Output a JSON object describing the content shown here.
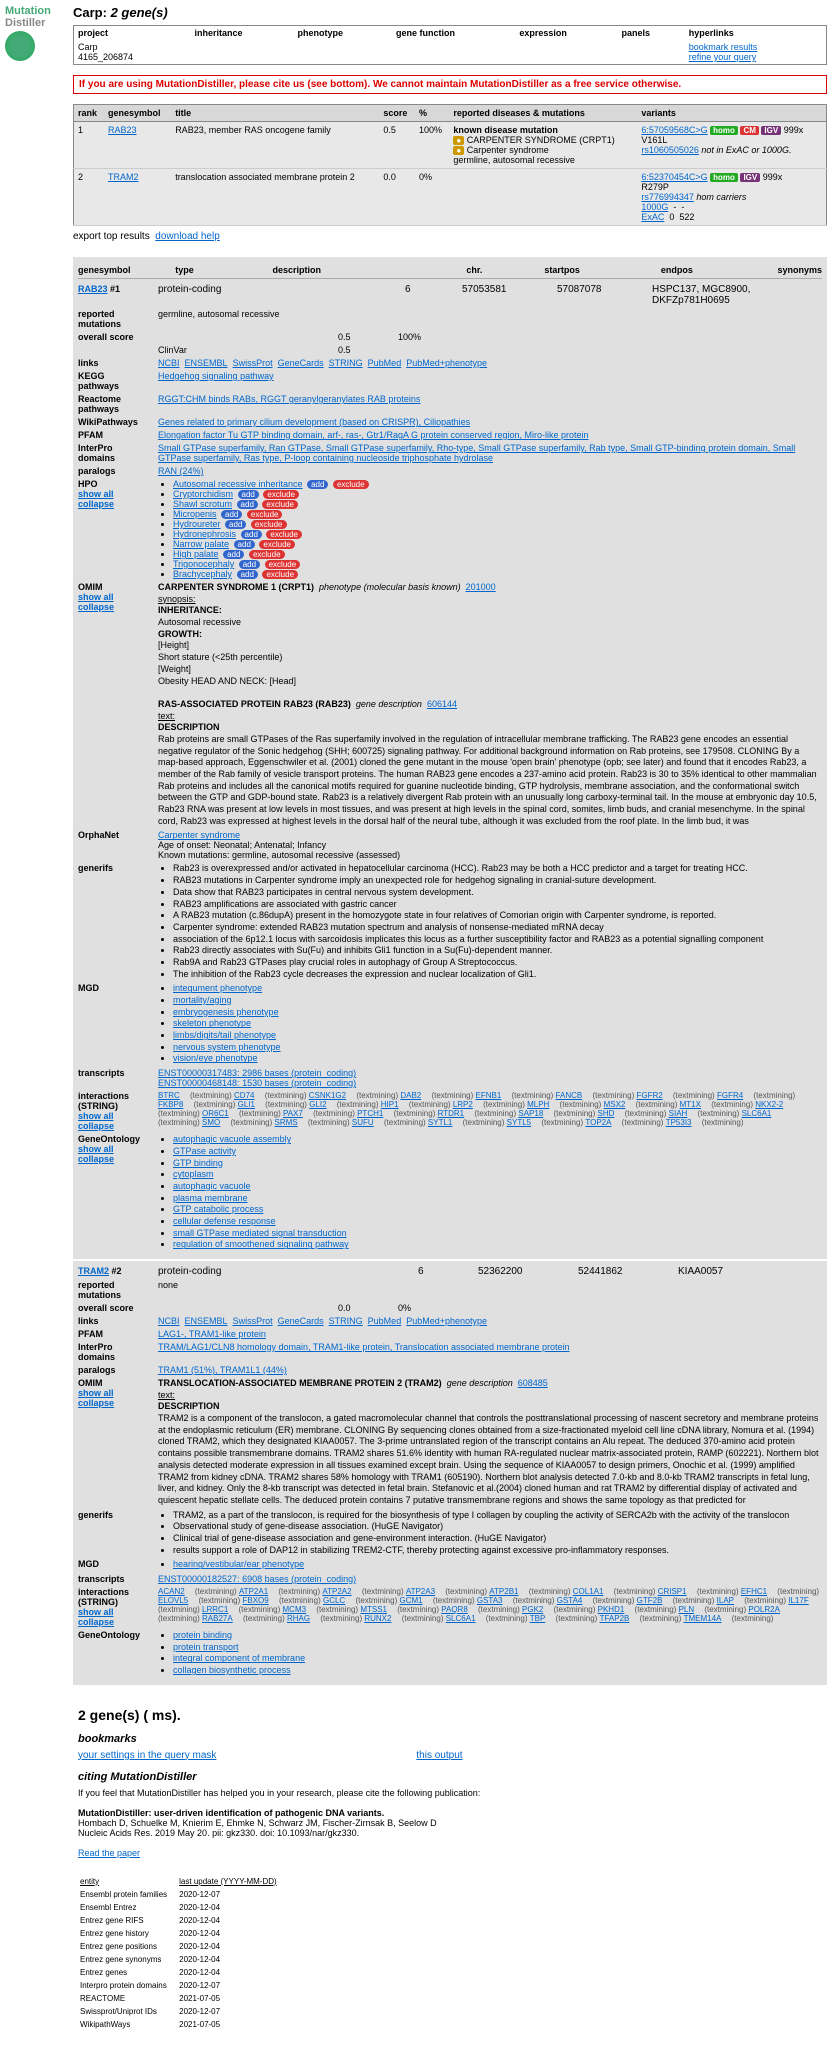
{
  "logo": {
    "mutation": "Mutation",
    "distiller": "Distiller"
  },
  "title_prefix": "Carp:",
  "title_count": "2 gene(s)",
  "project_table": {
    "headers": [
      "project",
      "inheritance",
      "phenotype",
      "gene function",
      "expression",
      "panels",
      "hyperlinks"
    ],
    "project_name": "Carp",
    "project_id": "4165_206874",
    "link_bookmark": "bookmark results",
    "link_refine": "refine your query"
  },
  "warning": "If you are using MutationDistiller, please cite us (see bottom). We cannot maintain MutationDistiller as a free service otherwise.",
  "results": {
    "headers": [
      "rank",
      "genesymbol",
      "title",
      "score",
      "%",
      "reported diseases & mutations",
      "variants"
    ],
    "rows": [
      {
        "rank": "1",
        "gene": "RAB23",
        "title": "RAB23, member RAS oncogene family",
        "score": "0.5",
        "pct": "100%",
        "disease_title": "known disease mutation",
        "disease_lines": [
          "CARPENTER SYNDROME (CRPT1)",
          "Carpenter syndrome",
          "germline, autosomal recessive"
        ],
        "variant_pos": "6:57059568C>G",
        "variant_badges": [
          "homo",
          "CM",
          "IGV"
        ],
        "variant_extra": "999x",
        "variant_protein": "V161L",
        "variant_rs": "rs1060505026",
        "variant_note": " not in ExAC or 1000G."
      },
      {
        "rank": "2",
        "gene": "TRAM2",
        "title": "translocation associated membrane protein 2",
        "score": "0.0",
        "pct": "0%",
        "disease_title": "",
        "disease_lines": [],
        "variant_pos": "6:52370454C>G",
        "variant_badges": [
          "homo",
          "IGV"
        ],
        "variant_extra": "999x",
        "variant_protein": "R279P",
        "variant_rs": "rs776994347",
        "variant_note": " hom carriers",
        "variant_counts": [
          [
            "1000G",
            "-",
            "-"
          ],
          [
            "ExAC",
            "0",
            "522"
          ]
        ]
      }
    ]
  },
  "export": {
    "label": "export top results",
    "link": "download help"
  },
  "detail_headers": [
    "genesymbol",
    "type",
    "description",
    "chr.",
    "startpos",
    "endpos",
    "synonyms"
  ],
  "gene1": {
    "symbol": "RAB23",
    "rank": "#1",
    "type": "protein-coding",
    "chr": "6",
    "start": "57053581",
    "end": "57087078",
    "synonyms": "HSPC137, MGC8900, DKFZp781H0695",
    "reported_mutations": "germline, autosomal recessive",
    "overall_score": "0.5",
    "overall_pct": "100%",
    "clinvar": "ClinVar",
    "clinvar_score": "0.5",
    "links": [
      "NCBI",
      "ENSEMBL",
      "SwissProt",
      "GeneCards",
      "STRING",
      "PubMed",
      "PubMed+phenotype"
    ],
    "kegg": "Hedgehog signaling pathway",
    "reactome": "RGGT:CHM binds RABs, RGGT geranylgeranylates RAB proteins",
    "wikipathways": "Genes related to primary cilium development (based on CRISPR), Ciliopathies",
    "pfam": "Elongation factor Tu GTP binding domain, arf-, ras-, Gtr1/RagA G protein conserved region, Miro-like protein",
    "interpro": "Small GTPase superfamily, Ran GTPase, Small GTPase superfamily, Rho-type, Small GTPase superfamily, Rab type, Small GTP-binding protein domain, Small GTPase superfamily, Ras type, P-loop containing nucleoside triphosphate hydrolase",
    "paralogs": "RAN (24%)",
    "hpo_label": "HPO",
    "show_all": "show all",
    "collapse": "collapse",
    "hpo_items": [
      {
        "t": "Autosomal recessive inheritance",
        "p1": "add",
        "p2": "exclude"
      },
      {
        "t": "Cryptorchidism",
        "p1": "add",
        "p2": "exclude"
      },
      {
        "t": "Shawl scrotum",
        "p1": "add",
        "p2": "exclude"
      },
      {
        "t": "Micropenis",
        "p1": "add",
        "p2": "exclude"
      },
      {
        "t": "Hydroureter",
        "p1": "add",
        "p2": "exclude"
      },
      {
        "t": "Hydronephrosis",
        "p1": "add",
        "p2": "exclude"
      },
      {
        "t": "Narrow palate",
        "p1": "add",
        "p2": "exclude"
      },
      {
        "t": "High palate",
        "p1": "add",
        "p2": "exclude"
      },
      {
        "t": "Trigonocephaly",
        "p1": "add",
        "p2": "exclude"
      },
      {
        "t": "Brachycephaly",
        "p1": "add",
        "p2": "exclude"
      }
    ],
    "omim_title": "CARPENTER SYNDROME 1 (CRPT1)",
    "omim_pheno": "phenotype (molecular basis known)",
    "omim_id": "201000",
    "omim_synopsis": "synopsis:",
    "omim_inheritance_h": "INHERITANCE:",
    "omim_inheritance": "Autosomal recessive",
    "omim_growth_h": "GROWTH:",
    "omim_growth": "[Height]\nShort stature (<25th percentile)\n[Weight]\nObesity HEAD AND NECK: [Head]",
    "omim_gene_title": "RAS-ASSOCIATED PROTEIN RAB23 (RAB23)",
    "omim_gene_note": "gene description",
    "omim_gene_id": "606144",
    "omim_text": "text:",
    "omim_desc_h": "DESCRIPTION",
    "omim_desc": "Rab proteins are small GTPases of the Ras superfamily involved in the regulation of intracellular membrane trafficking. The RAB23 gene encodes an essential negative regulator of the Sonic hedgehog (SHH; 600725) signaling pathway. For additional background information on Rab proteins, see 179508. CLONING By a map-based approach, Eggenschwiler et al. (2001) cloned the gene mutant in the mouse 'open brain' phenotype (opb; see later) and found that it encodes Rab23, a member of the Rab family of vesicle transport proteins. The human RAB23 gene encodes a 237-amino acid protein. Rab23 is 30 to 35% identical to other mammalian Rab proteins and includes all the canonical motifs required for guanine nucleotide binding, GTP hydrolysis, membrane association, and the conformational switch between the GTP and GDP-bound state. Rab23 is a relatively divergent Rab protein with an unusually long carboxy-terminal tail. In the mouse at embryonic day 10.5, Rab23 RNA was present at low levels in most tissues, and was present at high levels in the spinal cord, somites, limb buds, and cranial mesenchyme. In the spinal cord, Rab23 was expressed at highest levels in the dorsal half of the neural tube, although it was excluded from the roof plate. In the limb bud, it was",
    "orphanet_link": "Carpenter syndrome",
    "orphanet_age": "Age of onset: Neonatal; Antenatal; Infancy",
    "orphanet_known": "Known mutations: germline, autosomal recessive (assessed)",
    "generifs": [
      "Rab23 is overexpressed and/or activated in hepatocellular carcinoma (HCC). Rab23 may be both a HCC predictor and a target for treating HCC.",
      "RAB23 mutations in Carpenter syndrome imply an unexpected role for hedgehog signaling in cranial-suture development.",
      "Data show that RAB23 participates in central nervous system development.",
      "RAB23 amplifications are associated with gastric cancer",
      "A RAB23 mutation (c.86dupA) present in the homozygote state in four relatives of Comorian origin with Carpenter syndrome, is reported.",
      "Carpenter syndrome: extended RAB23 mutation spectrum and analysis of nonsense-mediated mRNA decay",
      "association of the 6p12.1 locus with sarcoidosis implicates this locus as a further susceptibility factor and RAB23 as a potential signalling component",
      "Rab23 directly associates with Su(Fu) and inhibits Gli1 function in a Su(Fu)-dependent manner.",
      "Rab9A and Rab23 GTPases play crucial roles in autophagy of Group A Streptococcus.",
      "The inhibition of the Rab23 cycle decreases the expression and nuclear localization of Gli1."
    ],
    "mgd": [
      "integument phenotype",
      "mortality/aging",
      "embryogenesis phenotype",
      "skeleton phenotype",
      "limbs/digits/tail phenotype",
      "nervous system phenotype",
      "vision/eye phenotype"
    ],
    "transcripts": "ENST00000317483: 2986 bases (protein_coding)\nENST00000468148: 1530 bases (protein_coding)",
    "interactions": "BTRC CD74 CSNK1G2 DAB2 EFNB1 FANCB FGFR2 FGFR4 FKBP8 GLI1 GLI2 HIP1 LRP2 MLPH MSX2 MT1X NKX2-2 OR6C1 PAX7 PTCH1 RTDR1 SAP18 SHD SIAH SLC6A1 SMO SRMS SUFU SYTL1 SYTL5 TOP2A TP53I3",
    "go": [
      "autophagic vacuole assembly",
      "GTPase activity",
      "GTP binding",
      "cytoplasm",
      "autophagic vacuole",
      "plasma membrane",
      "GTP catabolic process",
      "cellular defense response",
      "small GTPase mediated signal transduction",
      "regulation of smoothened signaling pathway"
    ]
  },
  "gene2": {
    "symbol": "TRAM2",
    "rank": "#2",
    "type": "protein-coding",
    "chr": "6",
    "start": "52362200",
    "end": "52441862",
    "synonyms": "KIAA0057",
    "reported_mutations": "none",
    "overall_score": "0.0",
    "overall_pct": "0%",
    "links": [
      "NCBI",
      "ENSEMBL",
      "SwissProt",
      "GeneCards",
      "STRING",
      "PubMed",
      "PubMed+phenotype"
    ],
    "pfam": "LAG1-, TRAM1-like protein",
    "interpro": "TRAM/LAG1/CLN8 homology domain, TRAM1-like protein, Translocation associated membrane protein",
    "paralogs": "TRAM1 (51%), TRAM1L1 (44%)",
    "omim_title": "TRANSLOCATION-ASSOCIATED MEMBRANE PROTEIN 2 (TRAM2)",
    "omim_gene_note": "gene description",
    "omim_gene_id": "608485",
    "omim_text": "text:",
    "omim_desc_h": "DESCRIPTION",
    "omim_desc": "TRAM2 is a component of the translocon, a gated macromolecular channel that controls the posttranslational processing of nascent secretory and membrane proteins at the endoplasmic reticulum (ER) membrane. CLONING By sequencing clones obtained from a size-fractionated myeloid cell line cDNA library, Nomura et al. (1994) cloned TRAM2, which they designated KIAA0057. The 3-prime untranslated region of the transcript contains an Alu repeat. The deduced 370-amino acid protein contains possible transmembrane domains. TRAM2 shares 51.6% identity with human RA-regulated nuclear matrix-associated protein, RAMP (602221). Northern blot analysis detected moderate expression in all tissues examined except brain. Using the sequence of KIAA0057 to design primers, Onochic et al. (1999) amplified TRAM2 from kidney cDNA. TRAM2 shares 58% homology with TRAM1 (605190). Northern blot analysis detected 7.0-kb and 8.0-kb TRAM2 transcripts in fetal lung, liver, and kidney. Only the 8-kb transcript was detected in fetal brain. Stefanovic et al.(2004) cloned human and rat TRAM2 by differential display of activated and quiescent hepatic stellate cells. The deduced protein contains 7 putative transmembrane regions and shows the same topology as that predicted for",
    "generifs": [
      "TRAM2, as a part of the translocon, is required for the biosynthesis of type I collagen by coupling the activity of SERCA2b with the activity of the translocon",
      "Observational study of gene-disease association. (HuGE Navigator)",
      "Clinical trial of gene-disease association and gene-environment interaction. (HuGE Navigator)",
      "results support a role of DAP12 in stabilizing TREM2-CTF, thereby protecting against excessive pro-inflammatory responses."
    ],
    "mgd": [
      "hearing/vestibular/ear phenotype"
    ],
    "transcripts": "ENST00000182527: 6908 bases (protein_coding)",
    "interactions": "ACAN2 ATP2A1 ATP2A2 ATP2A3 ATP2B1 COL1A1 CRISP1 EFHC1 ELOVL5 FBXO9 GCLC GCM1 GSTA3 GSTA4 GTF2B ILAP IL17F LRRC1 MCM3 MTSS1 PAQR8 PGK2 PKHD1 PLN POLR2A RAB27A RHAG RUNX2 SLC6A1 TBP TFAP2B TMEM14A",
    "go": [
      "protein binding",
      "protein transport",
      "integral component of membrane",
      "collagen biosynthetic process"
    ]
  },
  "footer": {
    "gene_count": "2 gene(s) ( ms).",
    "bookmarks_h": "bookmarks",
    "bm_query": "your settings in the query mask",
    "bm_output": "this output",
    "citing_h": "citing MutationDistiller",
    "citing_intro": "If you feel that MutationDistiller has helped you in your research, please cite the following publication:",
    "cite_title": "MutationDistiller: user-driven identification of pathogenic DNA variants.",
    "cite_authors": "Hombach D, Schuelke M, Knierim E, Ehmke N, Schwarz JM, Fischer-Zirnsak B, Seelow D",
    "cite_journal": "Nucleic Acids Res. 2019 May 20. pii: gkz330. doi: 10.1093/nar/gkz330.",
    "read_paper": "Read the paper",
    "update_header": [
      "entity",
      "last update (YYYY-MM-DD)"
    ],
    "updates": [
      [
        "Ensembl protein families",
        "2020-12-07"
      ],
      [
        "Ensembl Entrez",
        "2020-12-04"
      ],
      [
        "Entrez gene RIFS",
        "2020-12-04"
      ],
      [
        "Entrez gene history",
        "2020-12-04"
      ],
      [
        "Entrez gene positions",
        "2020-12-04"
      ],
      [
        "Entrez gene synonyms",
        "2020-12-04"
      ],
      [
        "Entrez genes",
        "2020-12-04"
      ],
      [
        "Interpro protein domains",
        "2020-12-07"
      ],
      [
        "REACTOME",
        "2021-07-05"
      ],
      [
        "Swissprot/Uniprot IDs",
        "2020-12-07"
      ],
      [
        "WikipathWays",
        "2021-07-05"
      ]
    ]
  }
}
